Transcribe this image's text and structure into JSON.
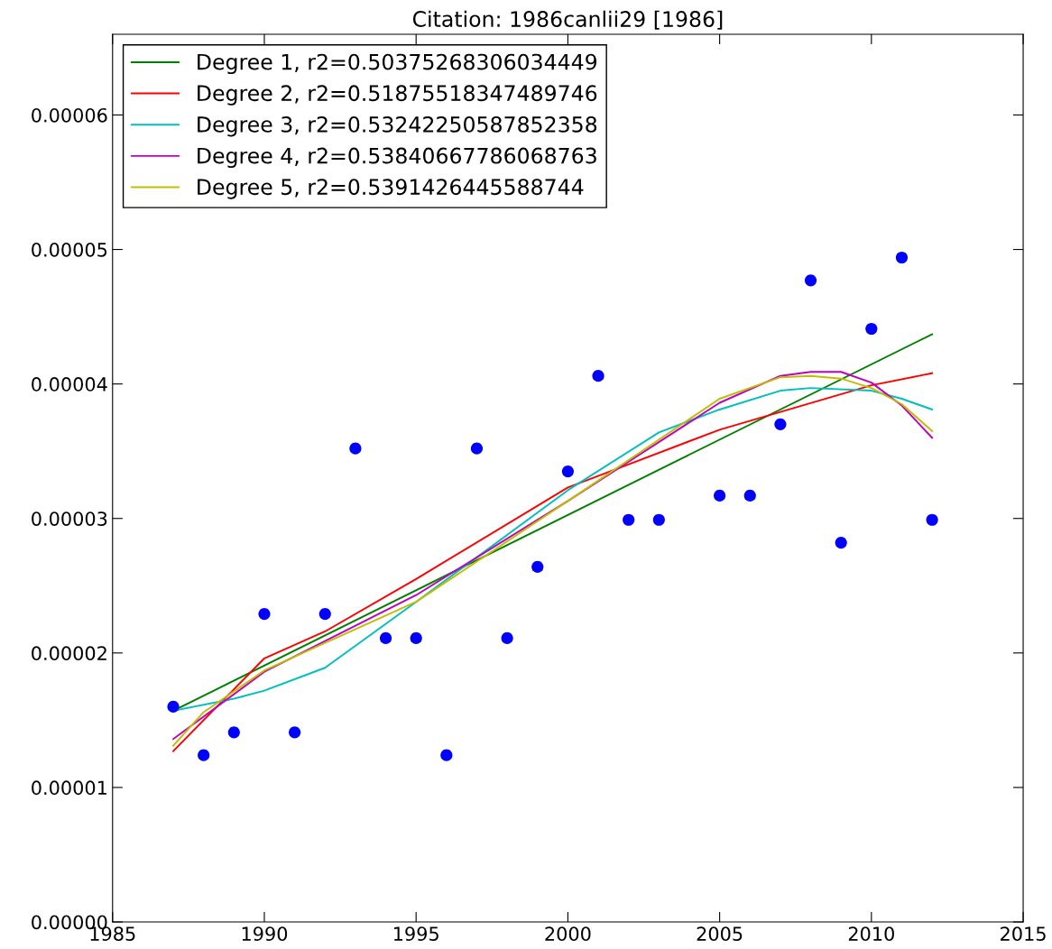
{
  "chart_data": {
    "type": "line",
    "title": "Citation: 1986canlii29 [1986]",
    "xlim": [
      1985,
      2015
    ],
    "xticks": [
      1985,
      1990,
      1995,
      2000,
      2005,
      2010,
      2015
    ],
    "ylim": [
      0,
      6.6e-05
    ],
    "yticks": [
      {
        "value": 0,
        "label": "0.00000"
      },
      {
        "value": 1e-05,
        "label": "0.00001"
      },
      {
        "value": 2e-05,
        "label": "0.00002"
      },
      {
        "value": 3e-05,
        "label": "0.00003"
      },
      {
        "value": 4e-05,
        "label": "0.00004"
      },
      {
        "value": 5e-05,
        "label": "0.00005"
      },
      {
        "value": 6e-05,
        "label": "0.00006"
      }
    ],
    "grid": false,
    "legend": "top left",
    "series": [
      {
        "type": "scatter",
        "color": "#0000ff",
        "marker": "circle",
        "x": [
          1987,
          1988,
          1989,
          1990,
          1991,
          1992,
          1993,
          1994,
          1995,
          1996,
          1997,
          1998,
          1999,
          2000,
          2001,
          2002,
          2003,
          2005,
          2006,
          2007,
          2008,
          2009,
          2010,
          2011,
          2012
        ],
        "values": [
          1.6e-05,
          1.24e-05,
          1.41e-05,
          2.29e-05,
          1.41e-05,
          2.29e-05,
          3.52e-05,
          2.11e-05,
          2.11e-05,
          1.24e-05,
          3.52e-05,
          2.11e-05,
          2.64e-05,
          3.35e-05,
          4.06e-05,
          2.99e-05,
          2.99e-05,
          3.17e-05,
          3.17e-05,
          3.7e-05,
          4.77e-05,
          2.82e-05,
          4.41e-05,
          4.94e-05,
          2.99e-05
        ]
      },
      {
        "name": "Degree 1, r2=0.50375268306034449",
        "color": "#008000",
        "x": [
          1987,
          2012
        ],
        "values": [
          1.57e-05,
          4.37e-05
        ]
      },
      {
        "name": "Degree 2, r2=0.51875518347489746",
        "color": "#ff0000",
        "x": [
          1987,
          1990,
          1992,
          1995,
          2000,
          2005,
          2010,
          2012
        ],
        "values": [
          1.27e-05,
          1.96e-05,
          2.16e-05,
          2.55e-05,
          3.23e-05,
          3.66e-05,
          3.99e-05,
          4.08e-05
        ]
      },
      {
        "name": "Degree 3, r2=0.53242250587852358",
        "color": "#00bfbf",
        "x": [
          1987,
          1989,
          1990,
          1992,
          1995,
          2000,
          2003,
          2005,
          2007,
          2008,
          2010,
          2011,
          2012
        ],
        "values": [
          1.57e-05,
          1.66e-05,
          1.72e-05,
          1.89e-05,
          2.38e-05,
          3.21e-05,
          3.64e-05,
          3.81e-05,
          3.95e-05,
          3.97e-05,
          3.95e-05,
          3.89e-05,
          3.81e-05
        ]
      },
      {
        "name": "Degree 4, r2=0.53840667786068763",
        "color": "#bf00bf",
        "x": [
          1987,
          1990,
          1995,
          2000,
          2005,
          2007,
          2008,
          2009,
          2010,
          2011,
          2012
        ],
        "values": [
          1.36e-05,
          1.86e-05,
          2.43e-05,
          3.13e-05,
          3.86e-05,
          4.06e-05,
          4.09e-05,
          4.09e-05,
          4.01e-05,
          3.84e-05,
          3.6e-05
        ]
      },
      {
        "name": "Degree 5, r2=0.5391426445588744",
        "color": "#bfbf00",
        "x": [
          1987,
          1988,
          1990,
          1995,
          2000,
          2005,
          2007,
          2008,
          2009,
          2010,
          2011,
          2012
        ],
        "values": [
          1.31e-05,
          1.56e-05,
          1.87e-05,
          2.38e-05,
          3.13e-05,
          3.89e-05,
          4.05e-05,
          4.06e-05,
          4.04e-05,
          3.97e-05,
          3.85e-05,
          3.65e-05
        ]
      }
    ]
  }
}
